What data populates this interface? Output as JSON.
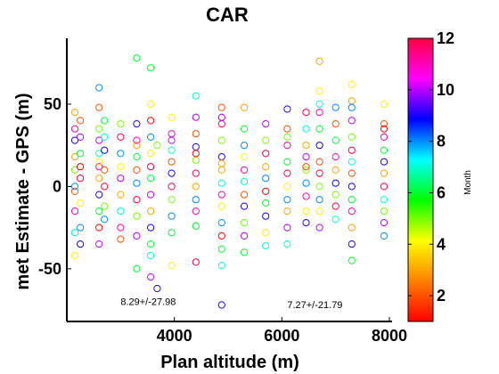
{
  "chart_data": {
    "type": "scatter",
    "title": "CAR",
    "xlabel": "Plan altitude (m)",
    "ylabel": "met Estimate - GPS (m)",
    "xlim": [
      2000,
      8050
    ],
    "ylim": [
      -82,
      90
    ],
    "xticks": [
      4000,
      6000,
      8000
    ],
    "yticks": [
      -50,
      0,
      50
    ],
    "marker": "open-circle",
    "colorbar": {
      "label": "Month",
      "range": [
        1,
        12
      ],
      "ticks": [
        2,
        4,
        6,
        8,
        10,
        12
      ],
      "colormap": "hsv-like",
      "stops": [
        "#ff0000",
        "#ff8000",
        "#ffff00",
        "#00ff00",
        "#00ffff",
        "#0000ff",
        "#ff00ff",
        "#ff0040"
      ]
    },
    "annotations": [
      {
        "text": "8.29+/-27.98",
        "x": 3000,
        "y": -72
      },
      {
        "text": "7.27+/-21.79",
        "x": 6100,
        "y": -74
      }
    ],
    "points": [
      [
        2150,
        35,
        11
      ],
      [
        2150,
        28,
        9
      ],
      [
        2150,
        18,
        3
      ],
      [
        2150,
        10,
        5
      ],
      [
        2150,
        -3,
        2
      ],
      [
        2150,
        -15,
        11
      ],
      [
        2150,
        -28,
        7
      ],
      [
        2150,
        -42,
        4
      ],
      [
        2150,
        45,
        3
      ],
      [
        2150,
        0,
        8
      ],
      [
        2250,
        40,
        2
      ],
      [
        2250,
        30,
        10
      ],
      [
        2250,
        20,
        6
      ],
      [
        2250,
        5,
        12
      ],
      [
        2250,
        -10,
        4
      ],
      [
        2250,
        -25,
        8
      ],
      [
        2250,
        12,
        1
      ],
      [
        2250,
        -35,
        9
      ],
      [
        2600,
        60,
        8
      ],
      [
        2600,
        48,
        2
      ],
      [
        2600,
        35,
        5
      ],
      [
        2600,
        28,
        10
      ],
      [
        2600,
        20,
        7
      ],
      [
        2600,
        12,
        11
      ],
      [
        2600,
        5,
        3
      ],
      [
        2600,
        -5,
        9
      ],
      [
        2600,
        -15,
        6
      ],
      [
        2600,
        -25,
        1
      ],
      [
        2600,
        -35,
        10
      ],
      [
        2600,
        15,
        4
      ],
      [
        2700,
        30,
        7
      ],
      [
        2700,
        22,
        9
      ],
      [
        2700,
        10,
        2
      ],
      [
        2700,
        0,
        12
      ],
      [
        2700,
        -12,
        5
      ],
      [
        2700,
        -20,
        8
      ],
      [
        2700,
        40,
        6
      ],
      [
        3000,
        30,
        12
      ],
      [
        3000,
        20,
        8
      ],
      [
        3000,
        12,
        4
      ],
      [
        3000,
        5,
        10
      ],
      [
        3000,
        -5,
        3
      ],
      [
        3000,
        -15,
        7
      ],
      [
        3000,
        -25,
        11
      ],
      [
        3000,
        -32,
        2
      ],
      [
        3000,
        38,
        5
      ],
      [
        3300,
        78,
        6
      ],
      [
        3300,
        38,
        9
      ],
      [
        3300,
        28,
        11
      ],
      [
        3300,
        18,
        6
      ],
      [
        3300,
        10,
        2
      ],
      [
        3300,
        2,
        8
      ],
      [
        3300,
        -8,
        12
      ],
      [
        3300,
        -18,
        5
      ],
      [
        3300,
        -30,
        10
      ],
      [
        3300,
        -50,
        6
      ],
      [
        3300,
        25,
        3
      ],
      [
        3560,
        72,
        6
      ],
      [
        3560,
        40,
        1
      ],
      [
        3560,
        30,
        8
      ],
      [
        3560,
        20,
        4
      ],
      [
        3560,
        12,
        12
      ],
      [
        3560,
        5,
        6
      ],
      [
        3560,
        -5,
        10
      ],
      [
        3560,
        -15,
        3
      ],
      [
        3560,
        -25,
        9
      ],
      [
        3560,
        -35,
        6
      ],
      [
        3560,
        -42,
        7
      ],
      [
        3560,
        -55,
        10
      ],
      [
        3560,
        50,
        4
      ],
      [
        3680,
        -62,
        9
      ],
      [
        3680,
        25,
        5
      ],
      [
        3950,
        42,
        4
      ],
      [
        3950,
        32,
        11
      ],
      [
        3950,
        22,
        7
      ],
      [
        3950,
        15,
        2
      ],
      [
        3950,
        8,
        9
      ],
      [
        3950,
        0,
        12
      ],
      [
        3950,
        -8,
        5
      ],
      [
        3950,
        -18,
        8
      ],
      [
        3950,
        -28,
        6
      ],
      [
        3950,
        -48,
        4
      ],
      [
        3950,
        28,
        10
      ],
      [
        4400,
        55,
        7
      ],
      [
        4400,
        42,
        10
      ],
      [
        4400,
        32,
        2
      ],
      [
        4400,
        24,
        9
      ],
      [
        4400,
        16,
        5
      ],
      [
        4400,
        8,
        12
      ],
      [
        4400,
        0,
        3
      ],
      [
        4400,
        -8,
        8
      ],
      [
        4400,
        -15,
        11
      ],
      [
        4400,
        -24,
        6
      ],
      [
        4400,
        -46,
        12
      ],
      [
        4400,
        20,
        1
      ],
      [
        4880,
        48,
        2
      ],
      [
        4880,
        38,
        12
      ],
      [
        4880,
        28,
        5
      ],
      [
        4880,
        18,
        9
      ],
      [
        4880,
        10,
        3
      ],
      [
        4880,
        2,
        7
      ],
      [
        4880,
        -5,
        11
      ],
      [
        4880,
        -12,
        4
      ],
      [
        4880,
        -22,
        8
      ],
      [
        4880,
        -30,
        1
      ],
      [
        4880,
        -38,
        6
      ],
      [
        4880,
        -48,
        7
      ],
      [
        4880,
        -72,
        9
      ],
      [
        4880,
        42,
        10
      ],
      [
        4880,
        14,
        3
      ],
      [
        5300,
        48,
        3
      ],
      [
        5300,
        35,
        6
      ],
      [
        5300,
        25,
        8
      ],
      [
        5300,
        18,
        4
      ],
      [
        5300,
        10,
        11
      ],
      [
        5300,
        3,
        7
      ],
      [
        5300,
        -5,
        2
      ],
      [
        5300,
        -12,
        9
      ],
      [
        5300,
        -22,
        5
      ],
      [
        5300,
        -30,
        10
      ],
      [
        5300,
        -40,
        6
      ],
      [
        5700,
        38,
        10
      ],
      [
        5700,
        28,
        5
      ],
      [
        5700,
        20,
        12
      ],
      [
        5700,
        12,
        3
      ],
      [
        5700,
        5,
        8
      ],
      [
        5700,
        -3,
        1
      ],
      [
        5700,
        -10,
        6
      ],
      [
        5700,
        -18,
        9
      ],
      [
        5700,
        -28,
        4
      ],
      [
        5700,
        -36,
        7
      ],
      [
        6100,
        47,
        9
      ],
      [
        6100,
        35,
        2
      ],
      [
        6100,
        25,
        11
      ],
      [
        6100,
        15,
        6
      ],
      [
        6100,
        8,
        12
      ],
      [
        6100,
        0,
        4
      ],
      [
        6100,
        -8,
        8
      ],
      [
        6100,
        -15,
        3
      ],
      [
        6100,
        -25,
        10
      ],
      [
        6100,
        -35,
        7
      ],
      [
        6100,
        30,
        5
      ],
      [
        6450,
        45,
        12
      ],
      [
        6450,
        35,
        7
      ],
      [
        6450,
        25,
        3
      ],
      [
        6450,
        18,
        10
      ],
      [
        6450,
        10,
        5
      ],
      [
        6450,
        2,
        8
      ],
      [
        6450,
        -6,
        11
      ],
      [
        6450,
        -15,
        4
      ],
      [
        6450,
        -22,
        9
      ],
      [
        6450,
        12,
        2
      ],
      [
        6700,
        76,
        3
      ],
      [
        6700,
        58,
        4
      ],
      [
        6700,
        45,
        11
      ],
      [
        6700,
        35,
        6
      ],
      [
        6700,
        25,
        9
      ],
      [
        6700,
        15,
        2
      ],
      [
        6700,
        8,
        12
      ],
      [
        6700,
        0,
        5
      ],
      [
        6700,
        -8,
        8
      ],
      [
        6700,
        -15,
        4
      ],
      [
        6700,
        -25,
        10
      ],
      [
        6700,
        50,
        7
      ],
      [
        7000,
        48,
        8
      ],
      [
        7000,
        38,
        2
      ],
      [
        7000,
        28,
        6
      ],
      [
        7000,
        18,
        11
      ],
      [
        7000,
        10,
        3
      ],
      [
        7000,
        2,
        9
      ],
      [
        7000,
        -5,
        5
      ],
      [
        7000,
        -12,
        12
      ],
      [
        7000,
        -20,
        7
      ],
      [
        7300,
        62,
        4
      ],
      [
        7300,
        52,
        3
      ],
      [
        7300,
        40,
        10
      ],
      [
        7300,
        30,
        5
      ],
      [
        7300,
        22,
        12
      ],
      [
        7300,
        15,
        7
      ],
      [
        7300,
        8,
        2
      ],
      [
        7300,
        0,
        9
      ],
      [
        7300,
        -8,
        6
      ],
      [
        7300,
        -15,
        11
      ],
      [
        7300,
        -25,
        3
      ],
      [
        7300,
        -35,
        9
      ],
      [
        7300,
        -45,
        6
      ],
      [
        7300,
        48,
        8
      ],
      [
        7900,
        50,
        4
      ],
      [
        7900,
        38,
        2
      ],
      [
        7900,
        30,
        11
      ],
      [
        7900,
        22,
        6
      ],
      [
        7900,
        15,
        9
      ],
      [
        7900,
        8,
        3
      ],
      [
        7900,
        0,
        12
      ],
      [
        7900,
        -8,
        7
      ],
      [
        7900,
        -15,
        5
      ],
      [
        7900,
        -22,
        10
      ],
      [
        7900,
        -30,
        8
      ],
      [
        7900,
        35,
        1
      ]
    ]
  }
}
